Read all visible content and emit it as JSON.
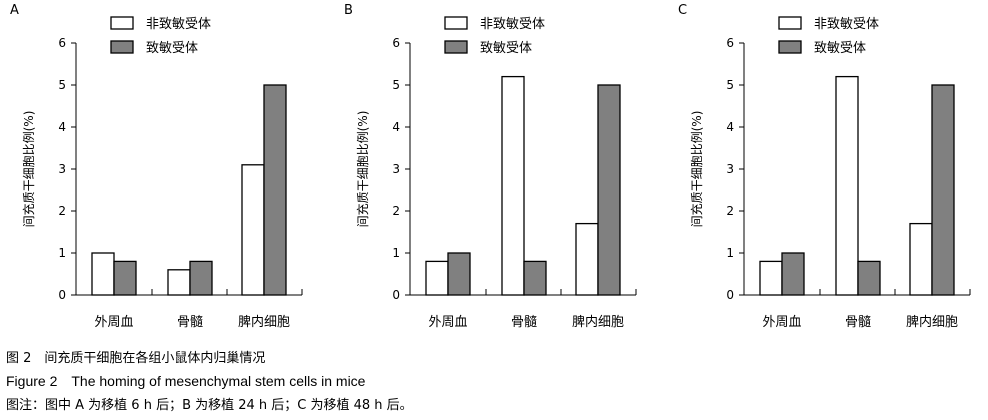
{
  "charts": [
    {
      "panel_label": "A",
      "type": "bar",
      "ylabel": "间充质干细胞比例(%)",
      "ylim": [
        0,
        6
      ],
      "yticks": [
        0,
        1,
        2,
        3,
        4,
        5,
        6
      ],
      "categories": [
        "外周血",
        "骨髓",
        "脾内细胞"
      ],
      "series": [
        {
          "name": "非致敏受体",
          "values": [
            1.0,
            0.6,
            3.1
          ]
        },
        {
          "name": "致敏受体",
          "values": [
            0.8,
            0.8,
            5.0
          ]
        }
      ]
    },
    {
      "panel_label": "B",
      "type": "bar",
      "ylabel": "间充质干细胞比例(%)",
      "ylim": [
        0,
        6
      ],
      "yticks": [
        0,
        1,
        2,
        3,
        4,
        5,
        6
      ],
      "categories": [
        "外周血",
        "骨髓",
        "脾内细胞"
      ],
      "series": [
        {
          "name": "非致敏受体",
          "values": [
            0.8,
            5.2,
            1.7
          ]
        },
        {
          "name": "致敏受体",
          "values": [
            1.0,
            0.8,
            5.0
          ]
        }
      ]
    },
    {
      "panel_label": "C",
      "type": "bar",
      "ylabel": "间充质干细胞比例(%)",
      "ylim": [
        0,
        6
      ],
      "yticks": [
        0,
        1,
        2,
        3,
        4,
        5,
        6
      ],
      "categories": [
        "外周血",
        "骨髓",
        "脾内细胞"
      ],
      "series": [
        {
          "name": "非致敏受体",
          "values": [
            0.8,
            5.2,
            1.7
          ]
        },
        {
          "name": "致敏受体",
          "values": [
            1.0,
            0.8,
            5.0
          ]
        }
      ]
    }
  ],
  "series_colors": [
    "#ffffff",
    "#808080"
  ],
  "caption": {
    "line1": "图 2　间充质干细胞在各组小鼠体内归巢情况",
    "line2": "Figure 2　The homing of mesenchymal stem cells in mice",
    "line3": "图注：图中 A 为移植 6 h 后；B 为移植 24 h 后；C 为移植 48 h 后。"
  },
  "chart_data": [
    {
      "type": "bar",
      "categories": [
        "外周血",
        "骨髓",
        "脾内细胞"
      ],
      "series": [
        {
          "name": "非致敏受体",
          "values": [
            1.0,
            0.6,
            3.1
          ]
        },
        {
          "name": "致敏受体",
          "values": [
            0.8,
            0.8,
            5.0
          ]
        }
      ],
      "ylabel": "间充质干细胞比例(%)",
      "ylim": [
        0,
        6
      ]
    },
    {
      "type": "bar",
      "categories": [
        "外周血",
        "骨髓",
        "脾内细胞"
      ],
      "series": [
        {
          "name": "非致敏受体",
          "values": [
            0.8,
            5.2,
            1.7
          ]
        },
        {
          "name": "致敏受体",
          "values": [
            1.0,
            0.8,
            5.0
          ]
        }
      ],
      "ylabel": "间充质干细胞比例(%)",
      "ylim": [
        0,
        6
      ]
    },
    {
      "type": "bar",
      "categories": [
        "外周血",
        "骨髓",
        "脾内细胞"
      ],
      "series": [
        {
          "name": "非致敏受体",
          "values": [
            0.8,
            5.2,
            1.7
          ]
        },
        {
          "name": "致敏受体",
          "values": [
            1.0,
            0.8,
            5.0
          ]
        }
      ],
      "ylabel": "间充质干细胞比例(%)",
      "ylim": [
        0,
        6
      ]
    }
  ]
}
